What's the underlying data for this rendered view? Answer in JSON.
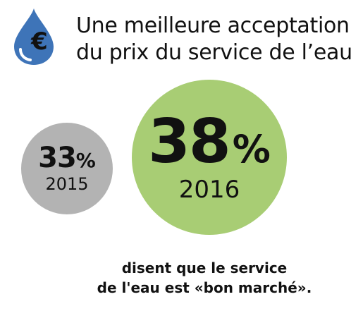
{
  "title": {
    "line1": "Une meilleure acceptation",
    "line2": "du prix du service de l’eau"
  },
  "icon": {
    "symbol": "€",
    "name": "water-drop-euro-icon",
    "color": "#3e74b8"
  },
  "stats": [
    {
      "percent": "33",
      "sign": "%",
      "year": "2015",
      "color": "#b3b3b3"
    },
    {
      "percent": "38",
      "sign": "%",
      "year": "2016",
      "color": "#a8cd74"
    }
  ],
  "caption": {
    "line1": "disent que le service",
    "line2": "de l'eau est «bon marché»."
  }
}
